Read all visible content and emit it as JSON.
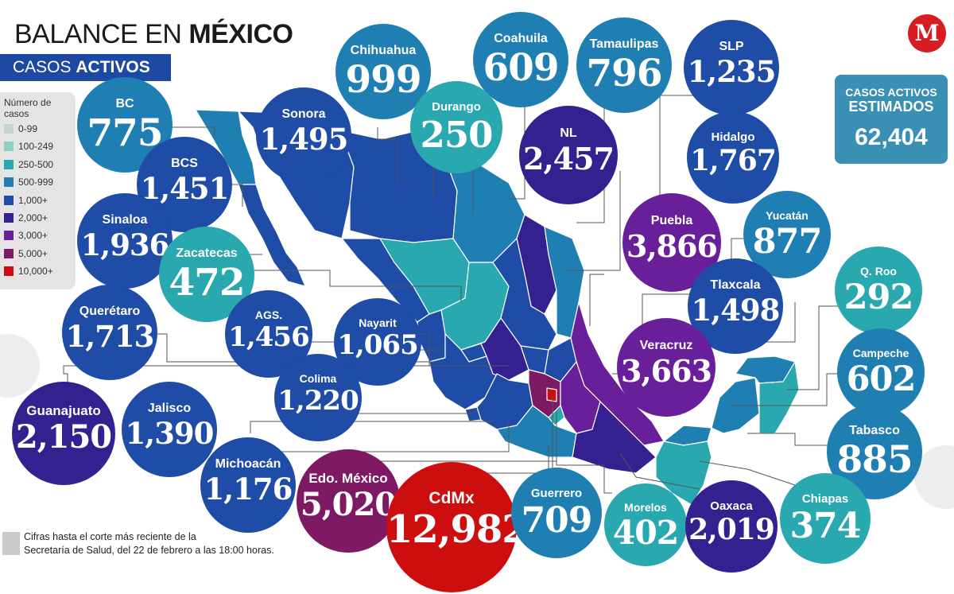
{
  "header": {
    "title_light": "BALANCE EN",
    "title_bold": "MÉXICO",
    "subtitle_light": "CASOS",
    "subtitle_bold": "ACTIVOS"
  },
  "logo": {
    "text": "M"
  },
  "legend": {
    "title": "Número de casos",
    "items": [
      {
        "label": "0-99",
        "color": "#c4d4ce"
      },
      {
        "label": "100-249",
        "color": "#8bd0c4"
      },
      {
        "label": "250-500",
        "color": "#29a8b0"
      },
      {
        "label": "500-999",
        "color": "#1f7fb3"
      },
      {
        "label": "1,000+",
        "color": "#1f4ca6"
      },
      {
        "label": "2,000+",
        "color": "#34208f"
      },
      {
        "label": "3,000+",
        "color": "#6a1f9a"
      },
      {
        "label": "5,000+",
        "color": "#7e1a64"
      },
      {
        "label": "10,000+",
        "color": "#cc0e0e"
      }
    ]
  },
  "estimated": {
    "line1": "CASOS ACTIVOS",
    "line2": "ESTIMADOS",
    "value": "62,404"
  },
  "footnote": {
    "line1": "Cifras hasta el corte más reciente de la",
    "line2": "Secretaría de Salud, del 22 de febrero a las 18:00 horas."
  },
  "states": [
    {
      "name": "BC",
      "value": "775"
    },
    {
      "name": "BCS",
      "value": "1,451"
    },
    {
      "name": "Sonora",
      "value": "1,495"
    },
    {
      "name": "Chihuahua",
      "value": "999"
    },
    {
      "name": "Coahuila",
      "value": "609"
    },
    {
      "name": "Durango",
      "value": "250"
    },
    {
      "name": "Tamaulipas",
      "value": "796"
    },
    {
      "name": "NL",
      "value": "2,457"
    },
    {
      "name": "SLP",
      "value": "1,235"
    },
    {
      "name": "Hidalgo",
      "value": "1,767"
    },
    {
      "name": "Sinaloa",
      "value": "1,936"
    },
    {
      "name": "Zacatecas",
      "value": "472"
    },
    {
      "name": "Puebla",
      "value": "3,866"
    },
    {
      "name": "Yucatán",
      "value": "877"
    },
    {
      "name": "Q. Roo",
      "value": "292"
    },
    {
      "name": "Tlaxcala",
      "value": "1,498"
    },
    {
      "name": "Querétaro",
      "value": "1,713"
    },
    {
      "name": "AGS.",
      "value": "1,456"
    },
    {
      "name": "Nayarit",
      "value": "1,065"
    },
    {
      "name": "Veracruz",
      "value": "3,663"
    },
    {
      "name": "Campeche",
      "value": "602"
    },
    {
      "name": "Colima",
      "value": "1,220"
    },
    {
      "name": "Guanajuato",
      "value": "2,150"
    },
    {
      "name": "Jalisco",
      "value": "1,390"
    },
    {
      "name": "Tabasco",
      "value": "885"
    },
    {
      "name": "Michoacán",
      "value": "1,176"
    },
    {
      "name": "Edo. México",
      "value": "5,020"
    },
    {
      "name": "CdMx",
      "value": "12,982"
    },
    {
      "name": "Guerrero",
      "value": "709"
    },
    {
      "name": "Morelos",
      "value": "402"
    },
    {
      "name": "Oaxaca",
      "value": "2,019"
    },
    {
      "name": "Chiapas",
      "value": "374"
    }
  ]
}
